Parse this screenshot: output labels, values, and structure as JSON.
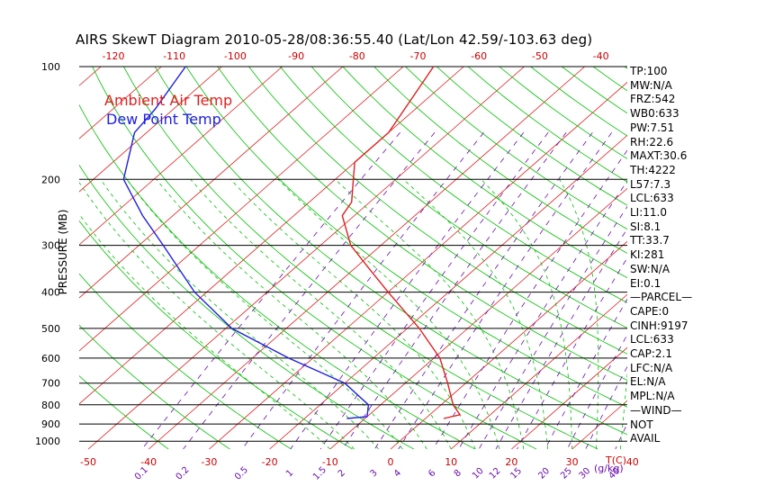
{
  "chart_data": {
    "type": "line",
    "title": "AIRS SkewT Diagram 2010-05-28/08:36:55.40 (Lat/Lon 42.59/-103.63 deg)",
    "ylabel": "PRESSURE (MB)",
    "x_unit_label": "T(C)",
    "mixing_ratio_unit": "g/kg",
    "pressure_ticks": [
      100,
      200,
      300,
      400,
      500,
      600,
      700,
      800,
      900,
      1000
    ],
    "bottom_temp_ticks": [
      -50,
      -40,
      -30,
      -20,
      -10,
      0,
      10,
      20,
      30,
      40
    ],
    "top_temp_ticks": [
      -120,
      -110,
      -100,
      -90,
      -80,
      -70,
      -60,
      -50,
      -40
    ],
    "mixing_ratio_labels": [
      "0.1",
      "0.2",
      "0.5",
      "1",
      "1.5",
      "2",
      "3",
      "4",
      "6",
      "8",
      "10",
      "12",
      "15",
      "20",
      "25",
      "30",
      "40"
    ],
    "series": [
      {
        "name": "Ambient Air Temp",
        "color": "#e02020",
        "points": [
          {
            "p": 100,
            "t": -65
          },
          {
            "p": 150,
            "t": -60
          },
          {
            "p": 180,
            "t": -60
          },
          {
            "p": 200,
            "t": -57
          },
          {
            "p": 230,
            "t": -53
          },
          {
            "p": 250,
            "t": -52
          },
          {
            "p": 300,
            "t": -45
          },
          {
            "p": 350,
            "t": -37
          },
          {
            "p": 400,
            "t": -30
          },
          {
            "p": 500,
            "t": -18
          },
          {
            "p": 600,
            "t": -9
          },
          {
            "p": 700,
            "t": -3
          },
          {
            "p": 800,
            "t": 2
          },
          {
            "p": 850,
            "t": 5
          },
          {
            "p": 870,
            "t": 3
          }
        ]
      },
      {
        "name": "Dew Point Temp",
        "color": "#2020e0",
        "points": [
          {
            "p": 100,
            "t": -106
          },
          {
            "p": 130,
            "t": -103
          },
          {
            "p": 150,
            "t": -102
          },
          {
            "p": 200,
            "t": -95
          },
          {
            "p": 250,
            "t": -85
          },
          {
            "p": 300,
            "t": -76
          },
          {
            "p": 400,
            "t": -62
          },
          {
            "p": 500,
            "t": -49
          },
          {
            "p": 600,
            "t": -34
          },
          {
            "p": 700,
            "t": -20
          },
          {
            "p": 800,
            "t": -12
          },
          {
            "p": 860,
            "t": -10
          },
          {
            "p": 870,
            "t": -13
          }
        ]
      }
    ],
    "colors": {
      "temp_lines": "#e02020",
      "dry_adiabats": "#00c000",
      "moist_adiabats": "#00c000",
      "mixing_lines": "#6a0dad",
      "isobars": "#000000"
    }
  },
  "indices": [
    "TP:100",
    "MW:N/A",
    "FRZ:542",
    "WB0:633",
    "PW:7.51",
    "RH:22.6",
    "MAXT:30.6",
    "TH:4222",
    "L57:7.3",
    "LCL:633",
    "LI:11.0",
    "SI:8.1",
    "TT:33.7",
    "KI:281",
    "SW:N/A",
    "EI:0.1",
    "—PARCEL—",
    "CAPE:0",
    "CINH:9197",
    "LCL:633",
    "CAP:2.1",
    "LFC:N/A",
    "EL:N/A",
    "MPL:N/A",
    "—WIND—",
    "NOT",
    "AVAIL"
  ]
}
